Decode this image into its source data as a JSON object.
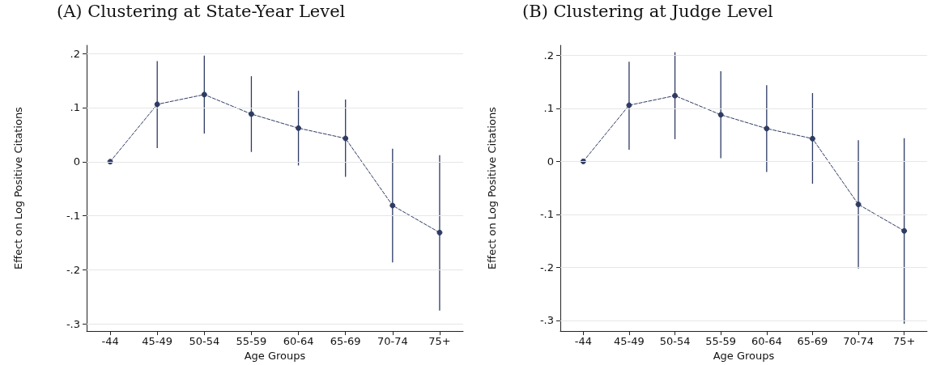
{
  "chart_data": [
    {
      "type": "line",
      "title": "(A) Clustering at State-Year Level",
      "xlabel": "Age Groups",
      "ylabel": "Effect on Log Positive Citations",
      "categories": [
        "-44",
        "45-49",
        "50-54",
        "55-59",
        "60-64",
        "65-69",
        "70-74",
        "75+"
      ],
      "series": [
        {
          "color": "#2e3b63",
          "values": [
            0,
            0.106,
            0.124,
            0.088,
            0.062,
            0.043,
            -0.081,
            -0.131
          ],
          "errors": [
            null,
            [
              0.025,
              0.186
            ],
            [
              0.052,
              0.196
            ],
            [
              0.018,
              0.158
            ],
            [
              -0.007,
              0.131
            ],
            [
              -0.028,
              0.115
            ],
            [
              -0.186,
              0.024
            ],
            [
              -0.275,
              0.012
            ]
          ]
        }
      ],
      "ylim": [
        -0.313,
        0.215
      ],
      "yticks": [
        {
          "value": -0.3,
          "label": "-.3"
        },
        {
          "value": -0.2,
          "label": "-.2"
        },
        {
          "value": -0.1,
          "label": "-.1"
        },
        0,
        {
          "value": 0.1,
          "label": ".1"
        },
        {
          "value": 0.2,
          "label": ".2"
        }
      ],
      "grid": "y",
      "marker": "circle",
      "line_style": "dashed"
    },
    {
      "type": "line",
      "title": "(B) Clustering at Judge Level",
      "xlabel": "Age Groups",
      "ylabel": "Effect on Log Positive Citations",
      "categories": [
        "-44",
        "45-49",
        "50-54",
        "55-59",
        "60-64",
        "65-69",
        "70-74",
        "75+"
      ],
      "series": [
        {
          "color": "#2e3b63",
          "values": [
            0,
            0.106,
            0.124,
            0.088,
            0.062,
            0.043,
            -0.081,
            -0.131
          ],
          "errors": [
            null,
            [
              0.022,
              0.188
            ],
            [
              0.042,
              0.206
            ],
            [
              0.006,
              0.17
            ],
            [
              -0.02,
              0.144
            ],
            [
              -0.042,
              0.129
            ],
            [
              -0.202,
              0.04
            ],
            [
              -0.306,
              0.044
            ]
          ]
        }
      ],
      "ylim": [
        -0.32,
        0.219
      ],
      "yticks": [
        {
          "value": -0.3,
          "label": "-.3"
        },
        {
          "value": -0.2,
          "label": "-.2"
        },
        {
          "value": -0.1,
          "label": "-.1"
        },
        0,
        {
          "value": 0.1,
          "label": ".1"
        },
        {
          "value": 0.2,
          "label": ".2"
        }
      ],
      "grid": "y",
      "marker": "circle",
      "line_style": "dashed"
    }
  ]
}
